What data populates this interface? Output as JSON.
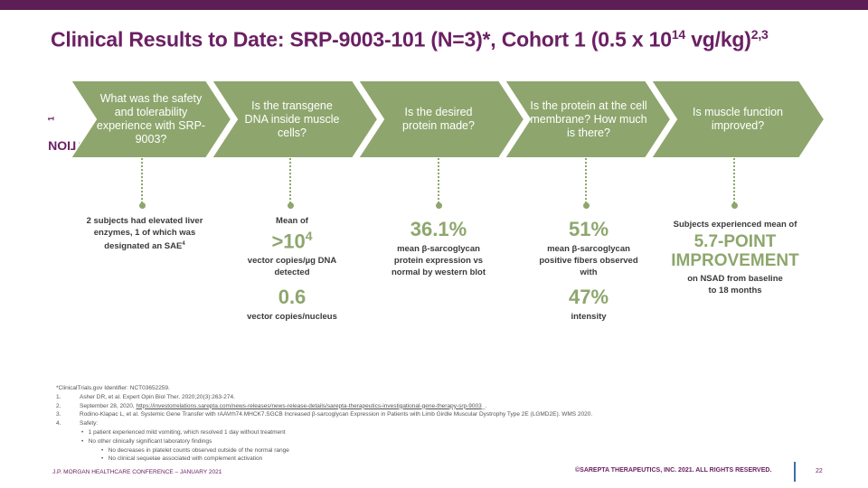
{
  "title": {
    "main": "Clinical Results to Date: SRP-9003-101 (N=3)*, Cohort 1 (0.5 x 10",
    "exp": "14",
    "unit": " vg/kg)",
    "sup": "2,3"
  },
  "question_label": {
    "text": "QUESTION",
    "sup": "1"
  },
  "steps": [
    {
      "text": "What was the safety and tolerability experience with SRP-9003?"
    },
    {
      "text": "Is the transgene DNA inside muscle cells?"
    },
    {
      "text": "Is the desired protein made?"
    },
    {
      "text": "Is the protein at the cell membrane? How much is there?"
    },
    {
      "text": "Is muscle function improved?"
    }
  ],
  "results": {
    "r1": {
      "text": "2 subjects had elevated liver enzymes, 1 of which was designated an SAE",
      "sup": "4"
    },
    "r2": {
      "mean": "Mean of",
      "value": ">10",
      "exp": "4",
      "desc": "vector copies/µg DNA detected",
      "value2": "0.6",
      "desc2": "vector copies/nucleus"
    },
    "r3": {
      "value": "36.1%",
      "desc": "mean β-sarcoglycan protein expression vs normal by western blot"
    },
    "r4": {
      "value": "51%",
      "desc": "mean β-sarcoglycan positive fibers observed with",
      "value2": "47%",
      "desc2": "intensity"
    },
    "r5": {
      "lead": "Subjects experienced mean of",
      "value": "5.7-POINT IMPROVEMENT",
      "desc": "on NSAD from baseline to 18 months"
    }
  },
  "footnotes": {
    "star": "*ClinicalTrials.gov Identifier: NCT03652259.",
    "n1": "1.",
    "f1": "Asher DR, et al. Expert Opin Biol Ther. 2020;20(3):263-274.",
    "n2": "2.",
    "f2a": "September 28, 2020, ",
    "f2link": "https://investorrelations.sarepta.com/news-releases/news-release-details/sarepta-therapeutics-investigational-gene-therapy-srp-9003",
    "f2b": "_.",
    "n3": "3.",
    "f3": "Rodino-Klapac L, et al. Systemic Gene Transfer with rAAVrh74.MHCK7.SGCB Increased β-sarcoglycan Expression in Patients with Limb Girdle Muscular Dystrophy Type 2E (LGMD2E). WMS 2020.",
    "n4": "4.",
    "f4": "Safety:",
    "b1": "1 patient experienced mild vomiting, which resolved 1 day without treatment",
    "b2": "No other clinically significant laboratory findings",
    "b3": "No decreases in platelet counts observed outside of the normal range",
    "b4": "No clinical sequelae associated with complement activation"
  },
  "footer": {
    "left": "J.P. MORGAN HEALTHCARE CONFERENCE – JANUARY 2021",
    "right": "©SAREPTA THERAPEUTICS, INC. 2021.  ALL RIGHTS RESERVED.",
    "page": "22"
  },
  "colors": {
    "brand_purple": "#6b2063",
    "top_bar": "#5d1d55",
    "chevron_green": "#8ea66d",
    "accent_blue": "#3b6fb0"
  }
}
